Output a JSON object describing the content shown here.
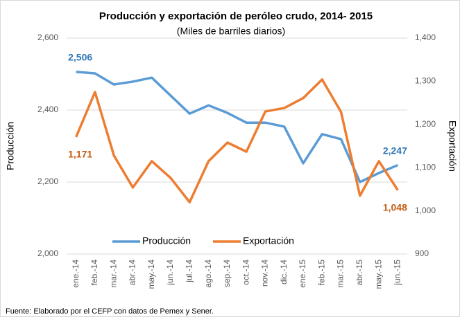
{
  "chart_data": {
    "type": "line",
    "title": "Producción  y exportación de peróleo crudo, 2014- 2015",
    "subtitle": "(Miles de barriles diarios)",
    "y_label": "Producción",
    "y2_label": "Exportación",
    "note": "Fuente: Elaborado por el CEFP con  datos de Pemex y Sener.",
    "categories": [
      "ene.-14",
      "feb.-14",
      "mar.-14",
      "abr.-14",
      "may.-14",
      "jun.-14",
      "jul.-14",
      "ago.-14",
      "sep.-14",
      "oct.-14",
      "nov.-14",
      "dic.-14",
      "ene.-15",
      "feb.-15",
      "mar.-15",
      "abr.-15",
      "may.-15",
      "jun.-15"
    ],
    "series": [
      {
        "name": "Producción",
        "color": "#5b9bd5",
        "axis": "y",
        "values": [
          2506,
          2502,
          2471,
          2479,
          2490,
          2440,
          2390,
          2413,
          2392,
          2365,
          2365,
          2354,
          2252,
          2333,
          2319,
          2200,
          2225,
          2247
        ],
        "value_labels": [
          "2,506",
          null,
          null,
          null,
          null,
          null,
          null,
          null,
          null,
          null,
          null,
          null,
          null,
          null,
          null,
          null,
          null,
          "2,247"
        ]
      },
      {
        "name": "Exportación",
        "color": "#ed7d31",
        "axis": "y2",
        "values": [
          1171,
          1275,
          1128,
          1054,
          1115,
          1076,
          1020,
          1115,
          1158,
          1137,
          1230,
          1238,
          1261,
          1304,
          1229,
          1035,
          1115,
          1048
        ],
        "value_labels": [
          "1,171",
          null,
          null,
          null,
          null,
          null,
          null,
          null,
          null,
          null,
          null,
          null,
          null,
          null,
          null,
          null,
          null,
          "1,048"
        ]
      }
    ],
    "ylim": [
      2000,
      2600
    ],
    "yticks": [
      {
        "value": 2000,
        "label": "2,000"
      },
      {
        "value": 2200,
        "label": "2,200"
      },
      {
        "value": 2400,
        "label": "2,400"
      },
      {
        "value": 2600,
        "label": "2,600"
      }
    ],
    "y2lim": [
      900,
      1400
    ],
    "y2ticks": [
      900,
      {
        "value": 1000,
        "label": "1,000"
      },
      {
        "value": 1100,
        "label": "1,100"
      },
      {
        "value": 1200,
        "label": "1,200"
      },
      {
        "value": 1300,
        "label": "1,300"
      },
      {
        "value": 1400,
        "label": "1,400"
      }
    ],
    "grid": true
  }
}
